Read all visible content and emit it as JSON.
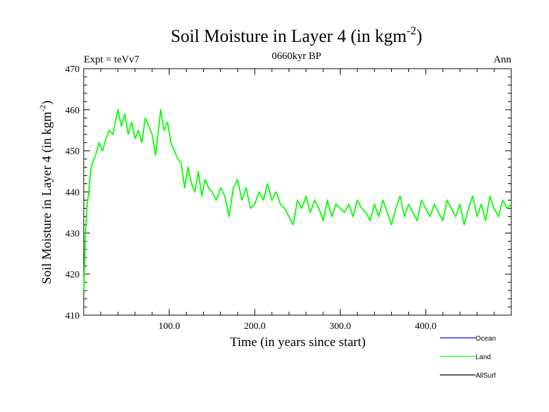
{
  "chart_data": {
    "type": "line",
    "title": "Soil Moisture in Layer 4 (in kgm",
    "title_sup": "-2",
    "title_close": ")",
    "subtitle": "0660kyr BP",
    "left_label": "Expt = teVv7",
    "right_label": "Ann",
    "xlabel": "Time (in years since start)",
    "ylabel": "Soil Moisture in Layer 4 (in kgm",
    "ylabel_sup": "-2",
    "ylabel_close": ")",
    "xlim": [
      0,
      500
    ],
    "ylim": [
      410,
      470
    ],
    "x_ticks": [
      100,
      200,
      300,
      400
    ],
    "x_tick_labels": [
      "100.0",
      "200.0",
      "300.0",
      "400.0"
    ],
    "y_ticks": [
      410,
      420,
      430,
      440,
      450,
      460,
      470
    ],
    "y_tick_labels": [
      "410",
      "420",
      "430",
      "440",
      "450",
      "460",
      "470"
    ],
    "grid": false,
    "legend_placement": "bottom-right below plot",
    "legend": [
      {
        "name": "Ocean",
        "color": "#0000ff"
      },
      {
        "name": "Land",
        "color": "#00ff00"
      },
      {
        "name": "AllSurf",
        "color": "#000000"
      }
    ],
    "series": [
      {
        "name": "Land",
        "color": "#00ff00",
        "x": [
          0,
          2,
          4,
          6,
          8,
          10,
          14,
          18,
          22,
          26,
          30,
          34,
          38,
          40,
          44,
          48,
          52,
          56,
          60,
          64,
          68,
          72,
          76,
          80,
          84,
          88,
          90,
          94,
          98,
          102,
          106,
          110,
          114,
          118,
          122,
          126,
          130,
          134,
          138,
          142,
          146,
          150,
          155,
          160,
          165,
          170,
          175,
          180,
          185,
          190,
          195,
          200,
          205,
          210,
          215,
          220,
          225,
          230,
          235,
          240,
          245,
          250,
          255,
          260,
          265,
          270,
          275,
          280,
          285,
          290,
          295,
          300,
          305,
          310,
          315,
          320,
          325,
          330,
          335,
          340,
          345,
          350,
          355,
          360,
          365,
          370,
          375,
          380,
          385,
          390,
          395,
          400,
          405,
          410,
          415,
          420,
          425,
          430,
          435,
          440,
          445,
          450,
          455,
          460,
          465,
          470,
          475,
          480,
          485,
          490,
          495,
          500
        ],
        "y": [
          416,
          430,
          437,
          440,
          445,
          447,
          449,
          452,
          450,
          453,
          455,
          454,
          458,
          460,
          456,
          459,
          454,
          457,
          453,
          455,
          452,
          458,
          456,
          454,
          449,
          456,
          460,
          455,
          457,
          452,
          450,
          448,
          447,
          441,
          446,
          442,
          440,
          445,
          439,
          443,
          441,
          440,
          438,
          441,
          439,
          434,
          441,
          443,
          438,
          441,
          436,
          437,
          440,
          438,
          442,
          438,
          440,
          437,
          436,
          434,
          432,
          438,
          436,
          439,
          435,
          438,
          436,
          433,
          438,
          434,
          437,
          436,
          435,
          437,
          434,
          438,
          436,
          435,
          433,
          437,
          434,
          438,
          435,
          432,
          436,
          439,
          434,
          437,
          435,
          433,
          438,
          436,
          434,
          437,
          435,
          433,
          438,
          436,
          434,
          437,
          432,
          436,
          439,
          434,
          437,
          433,
          439,
          436,
          434,
          438,
          436,
          437
        ]
      }
    ]
  }
}
